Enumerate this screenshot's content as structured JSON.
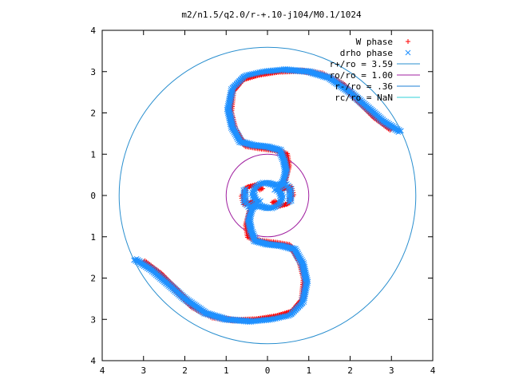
{
  "chart_data": {
    "type": "scatter",
    "title": "m2/n1.5/q2.0/r-+.10-j104/M0.1/1024",
    "xlabel": "",
    "ylabel": "",
    "xlim": [
      -4,
      4
    ],
    "ylim": [
      -4,
      4
    ],
    "x_tick_labels": [
      "4",
      "3",
      "2",
      "1",
      "0",
      "1",
      "2",
      "3",
      "4"
    ],
    "y_tick_labels": [
      "4",
      "3",
      "2",
      "1",
      "0",
      "1",
      "2",
      "3",
      "4"
    ],
    "grid": false,
    "legend_position": "top-right",
    "series": [
      {
        "name": "W phase",
        "kind": "points",
        "marker": "plus",
        "color": "#ff0000",
        "path_points": [
          [
            3.0,
            1.6
          ],
          [
            2.6,
            1.9
          ],
          [
            2.2,
            2.3
          ],
          [
            1.8,
            2.7
          ],
          [
            1.3,
            2.95
          ],
          [
            0.8,
            3.02
          ],
          [
            0.3,
            3.0
          ],
          [
            -0.2,
            2.92
          ],
          [
            -0.6,
            2.8
          ],
          [
            -0.85,
            2.5
          ],
          [
            -0.9,
            2.0
          ],
          [
            -0.8,
            1.6
          ],
          [
            -0.65,
            1.35
          ],
          [
            -0.5,
            1.2
          ],
          [
            -0.2,
            1.15
          ],
          [
            0.2,
            1.1
          ],
          [
            0.45,
            1.0
          ],
          [
            0.5,
            0.7
          ],
          [
            0.45,
            0.5
          ],
          [
            0.4,
            0.3
          ],
          [
            0.35,
            0.15
          ]
        ],
        "inner_points": [
          [
            0.35,
            0.15
          ],
          [
            0.55,
            0.2
          ],
          [
            0.6,
            0.0
          ],
          [
            0.5,
            -0.2
          ],
          [
            0.3,
            -0.25
          ],
          [
            0.15,
            -0.15
          ]
        ]
      },
      {
        "name": "drho phase",
        "kind": "points",
        "marker": "cross",
        "color": "#1e90ff",
        "path_points": [
          [
            3.2,
            1.55
          ],
          [
            2.8,
            1.8
          ],
          [
            2.4,
            2.15
          ],
          [
            2.0,
            2.5
          ],
          [
            1.5,
            2.85
          ],
          [
            1.0,
            3.0
          ],
          [
            0.4,
            3.05
          ],
          [
            -0.1,
            3.0
          ],
          [
            -0.55,
            2.9
          ],
          [
            -0.85,
            2.6
          ],
          [
            -0.95,
            2.1
          ],
          [
            -0.85,
            1.65
          ],
          [
            -0.65,
            1.3
          ],
          [
            -0.35,
            1.22
          ],
          [
            0.0,
            1.18
          ],
          [
            0.3,
            1.1
          ],
          [
            0.4,
            0.85
          ],
          [
            0.45,
            0.6
          ],
          [
            0.4,
            0.4
          ],
          [
            0.3,
            0.2
          ]
        ],
        "inner_points": [
          [
            -0.55,
            0.15
          ],
          [
            -0.55,
            -0.15
          ],
          [
            -0.4,
            -0.3
          ],
          [
            -0.2,
            -0.25
          ],
          [
            0.0,
            -0.3
          ],
          [
            0.15,
            -0.3
          ],
          [
            0.3,
            -0.2
          ],
          [
            0.35,
            -0.05
          ],
          [
            0.3,
            0.1
          ],
          [
            0.2,
            0.15
          ]
        ],
        "symmetry": "point-symmetric about origin"
      },
      {
        "name": "r+/ro = 3.59",
        "kind": "circle",
        "radius": 3.59,
        "color": "#2a8fcf"
      },
      {
        "name": "ro/ro = 1.00",
        "kind": "circle",
        "radius": 1.0,
        "color": "#a020a0"
      },
      {
        "name": "r-/ro = .36",
        "kind": "circle",
        "radius": 0.36,
        "color": "#1e7fd6"
      },
      {
        "name": "rc/ro = NaN",
        "kind": "circle",
        "radius": null,
        "color": "#30d0d8"
      }
    ]
  }
}
